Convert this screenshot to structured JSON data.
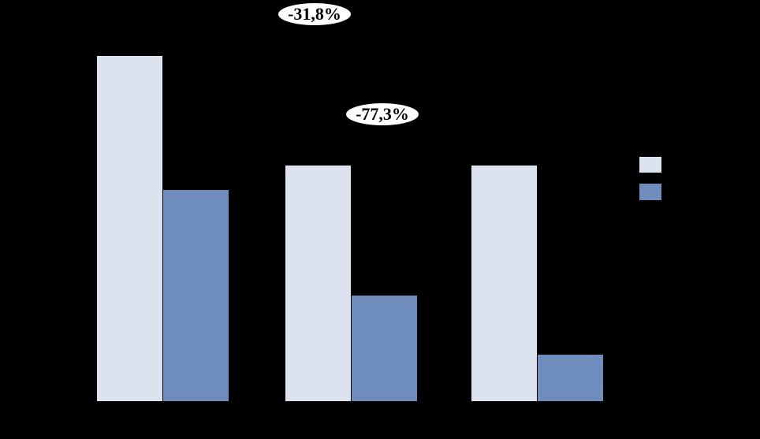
{
  "chart": {
    "background_color": "#000000"
  },
  "annotations": {
    "callout_1": {
      "text": "-31,8%",
      "shape": "ellipse",
      "fill": "#ffffff",
      "text_color": "#000000"
    },
    "callout_2": {
      "text": "-77,3%",
      "shape": "ellipse",
      "fill": "#ffffff",
      "text_color": "#000000"
    }
  },
  "legend": {
    "position": "right",
    "items": [
      {
        "swatch_color": "#dce3ef",
        "label": ""
      },
      {
        "swatch_color": "#6e8cbc",
        "label": ""
      }
    ]
  },
  "chart_data": {
    "type": "bar",
    "title": "",
    "categories": [
      "",
      "",
      ""
    ],
    "series": [
      {
        "name": "series-1-light-blue",
        "color": "#dce3ef",
        "values": [
          100,
          68.2,
          68.2
        ]
      },
      {
        "name": "series-2-medium-blue",
        "color": "#6e8cbc",
        "values": [
          61.2,
          30.6,
          13.5
        ]
      }
    ],
    "values_note": "relative scale, tallest bar = 100; axis, tick and legend text not visible against black background",
    "ylim": [
      0,
      100
    ],
    "grid": false,
    "legend_position": "right",
    "annotations": [
      {
        "text": "-31,8%",
        "placed_above": "group 2 light bar"
      },
      {
        "text": "-77,3%",
        "placed_above": "group 2 dark bar"
      }
    ]
  }
}
